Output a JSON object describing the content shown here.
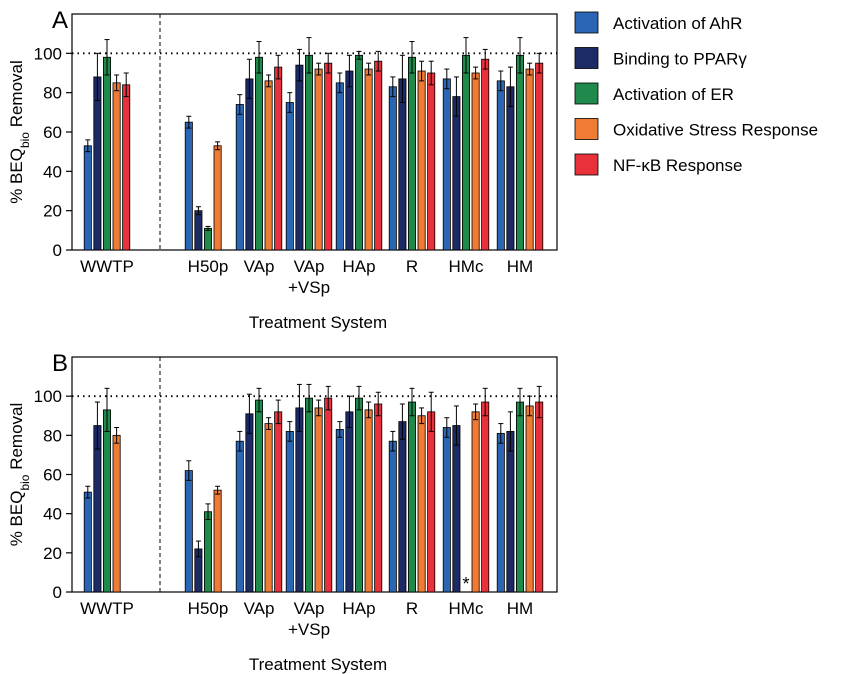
{
  "legend": [
    {
      "label": "Activation of AhR",
      "color": "#2a66b4"
    },
    {
      "label": "Binding to PPARγ",
      "color": "#1c2a66"
    },
    {
      "label": "Activation of ER",
      "color": "#1f8a4c"
    },
    {
      "label": "Oxidative Stress Response",
      "color": "#f07b35"
    },
    {
      "label": "NF-κB Response",
      "color": "#e8313a"
    }
  ],
  "chart_data": [
    {
      "panel": "A",
      "type": "bar",
      "xlabel": "Treatment System",
      "ylabel": "% BEQbio Removal",
      "ylim": [
        0,
        120
      ],
      "yticks": [
        0,
        20,
        40,
        60,
        80,
        100
      ],
      "reference_line": 100,
      "categories": [
        {
          "label": "WWTP",
          "sub": ""
        },
        {
          "label": "H50p",
          "sub": ""
        },
        {
          "label": "VAp",
          "sub": ""
        },
        {
          "label": "VAp",
          "sub": "+VSp"
        },
        {
          "label": "HAp",
          "sub": ""
        },
        {
          "label": "R",
          "sub": ""
        },
        {
          "label": "HMc",
          "sub": ""
        },
        {
          "label": "HM",
          "sub": ""
        }
      ],
      "series": [
        {
          "name": "Activation of AhR",
          "values": [
            53,
            65,
            74,
            75,
            85,
            83,
            87,
            86
          ],
          "errors": [
            3,
            3,
            5,
            5,
            5,
            5,
            5,
            5
          ]
        },
        {
          "name": "Binding to PPARγ",
          "values": [
            88,
            20,
            87,
            94,
            91,
            87,
            78,
            83
          ],
          "errors": [
            12,
            2,
            10,
            8,
            8,
            12,
            10,
            10
          ]
        },
        {
          "name": "Activation of ER",
          "values": [
            98,
            11,
            98,
            99,
            99,
            98,
            99,
            99
          ],
          "errors": [
            9,
            1,
            8,
            9,
            2,
            8,
            9,
            9
          ]
        },
        {
          "name": "Oxidative Stress Response",
          "values": [
            85,
            53,
            86,
            92,
            92,
            91,
            90,
            92
          ],
          "errors": [
            4,
            2,
            3,
            3,
            3,
            5,
            3,
            3
          ]
        },
        {
          "name": "NF-κB Response",
          "values": [
            84,
            null,
            93,
            95,
            96,
            90,
            97,
            95
          ],
          "errors": [
            6,
            null,
            6,
            5,
            5,
            6,
            5,
            5
          ]
        }
      ],
      "annotations": []
    },
    {
      "panel": "B",
      "type": "bar",
      "xlabel": "Treatment System",
      "ylabel": "% BEQbio Removal",
      "ylim": [
        0,
        120
      ],
      "yticks": [
        0,
        20,
        40,
        60,
        80,
        100
      ],
      "reference_line": 100,
      "categories": [
        {
          "label": "WWTP",
          "sub": ""
        },
        {
          "label": "H50p",
          "sub": ""
        },
        {
          "label": "VAp",
          "sub": ""
        },
        {
          "label": "VAp",
          "sub": "+VSp"
        },
        {
          "label": "HAp",
          "sub": ""
        },
        {
          "label": "R",
          "sub": ""
        },
        {
          "label": "HMc",
          "sub": ""
        },
        {
          "label": "HM",
          "sub": ""
        }
      ],
      "series": [
        {
          "name": "Activation of AhR",
          "values": [
            51,
            62,
            77,
            82,
            83,
            77,
            84,
            81
          ],
          "errors": [
            3,
            5,
            5,
            5,
            4,
            5,
            5,
            5
          ]
        },
        {
          "name": "Binding to PPARγ",
          "values": [
            85,
            22,
            91,
            94,
            92,
            87,
            85,
            82
          ],
          "errors": [
            12,
            4,
            10,
            12,
            8,
            9,
            10,
            10
          ]
        },
        {
          "name": "Activation of ER",
          "values": [
            93,
            41,
            98,
            99,
            99,
            97,
            null,
            97
          ],
          "errors": [
            11,
            4,
            6,
            7,
            6,
            7,
            null,
            7
          ]
        },
        {
          "name": "Oxidative Stress Response",
          "values": [
            80,
            52,
            86,
            94,
            93,
            90,
            92,
            95
          ],
          "errors": [
            4,
            2,
            3,
            4,
            4,
            4,
            4,
            5
          ]
        },
        {
          "name": "NF-κB Response",
          "values": [
            null,
            null,
            92,
            99,
            96,
            92,
            97,
            97
          ],
          "errors": [
            null,
            null,
            6,
            6,
            6,
            10,
            7,
            8
          ]
        }
      ],
      "annotations": [
        {
          "text": "*",
          "category": "HMc",
          "series": "Activation of ER"
        }
      ]
    }
  ]
}
